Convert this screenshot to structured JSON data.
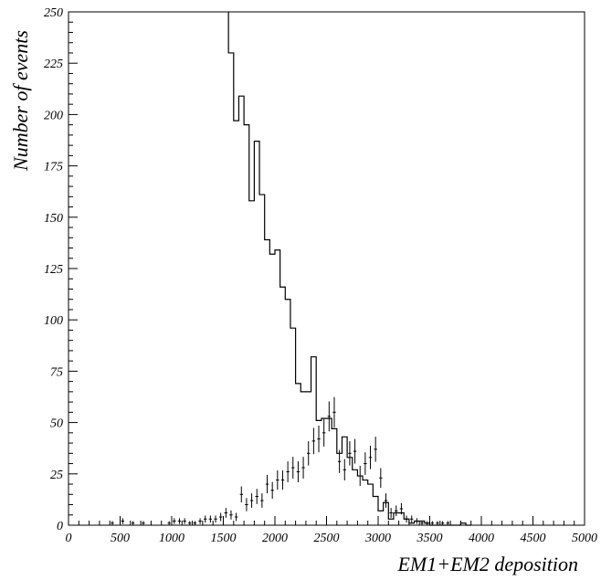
{
  "chart_data": {
    "type": "histogram",
    "xlabel": "EM1+EM2 deposition",
    "ylabel": "Number of events",
    "xlim": [
      0,
      5000
    ],
    "ylim": [
      0,
      250
    ],
    "x_ticks": [
      0,
      500,
      1000,
      1500,
      2000,
      2500,
      3000,
      3500,
      4000,
      4500,
      5000
    ],
    "y_ticks": [
      0,
      25,
      50,
      75,
      100,
      125,
      150,
      175,
      200,
      225,
      250
    ],
    "grid": false,
    "bin_width": 50,
    "series": [
      {
        "style": "step",
        "bin_edges": [
          1550,
          1600,
          1650,
          1700,
          1750,
          1800,
          1850,
          1900,
          1950,
          2000,
          2050,
          2100,
          2150,
          2200,
          2250,
          2300,
          2350,
          2400,
          2450,
          2500,
          2550,
          2600,
          2650,
          2700,
          2750,
          2800,
          2850,
          2900,
          2950,
          3000,
          3050,
          3100,
          3150,
          3200,
          3250,
          3300,
          3350,
          3400,
          3450,
          3500,
          3550,
          3600,
          3650,
          3700,
          3750,
          3800,
          3850,
          3900
        ],
        "values": [
          230,
          197,
          209,
          195,
          158,
          187,
          161,
          139,
          132,
          134,
          116,
          110,
          96,
          69,
          65,
          65,
          82,
          51,
          52,
          52,
          47,
          35,
          43,
          33,
          27,
          24,
          22,
          20,
          14,
          7,
          11,
          3,
          6,
          6,
          3,
          1,
          2,
          2,
          1,
          0,
          0,
          0,
          0,
          0,
          0,
          1,
          0
        ]
      },
      {
        "style": "error-points",
        "x": [
          425,
          525,
          625,
          725,
          975,
          1025,
          1075,
          1125,
          1175,
          1225,
          1275,
          1325,
          1375,
          1425,
          1475,
          1525,
          1575,
          1625,
          1675,
          1725,
          1775,
          1825,
          1875,
          1925,
          1975,
          2025,
          2075,
          2125,
          2175,
          2225,
          2275,
          2325,
          2375,
          2425,
          2475,
          2525,
          2575,
          2625,
          2675,
          2725,
          2775,
          2825,
          2875,
          2925,
          2975,
          3025,
          3075,
          3125,
          3175,
          3225,
          3275,
          3325,
          3375,
          3425,
          3475,
          3525,
          3575,
          3625,
          3675
        ],
        "y": [
          1,
          2,
          1,
          1,
          1,
          2,
          2,
          2,
          1,
          1,
          2,
          3,
          3,
          3,
          4,
          6,
          5,
          4,
          15,
          10,
          12,
          14,
          12,
          20,
          17,
          22,
          22,
          26,
          28,
          26,
          28,
          35,
          41,
          42,
          45,
          53,
          55,
          31,
          27,
          35,
          36,
          24,
          30,
          33,
          37,
          23,
          12,
          6,
          7,
          8,
          3,
          3,
          2,
          1,
          1,
          1,
          1,
          1,
          1
        ],
        "yerr": [
          1,
          1.4,
          1,
          1,
          1,
          1.4,
          1.4,
          1.4,
          1,
          1,
          1.4,
          1.7,
          1.7,
          1.7,
          2,
          2.4,
          2.2,
          2,
          3.9,
          3.2,
          3.5,
          3.7,
          3.5,
          4.5,
          4.1,
          4.7,
          4.7,
          5.1,
          5.3,
          5.1,
          5.3,
          5.9,
          6.4,
          6.5,
          6.7,
          7.3,
          7.4,
          5.6,
          5.2,
          5.9,
          6,
          4.9,
          5.5,
          5.7,
          6.1,
          4.8,
          3.5,
          2.4,
          2.6,
          2.8,
          1.7,
          1.7,
          1.4,
          1,
          1,
          1,
          1,
          1,
          1
        ]
      }
    ]
  }
}
